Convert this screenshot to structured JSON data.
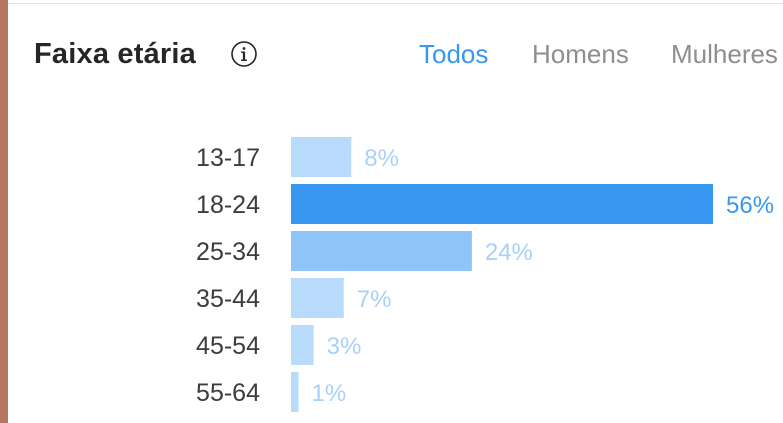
{
  "header": {
    "title": "Faixa etária",
    "info_icon": "info-circle-icon"
  },
  "tabs": [
    {
      "label": "Todos",
      "active": true
    },
    {
      "label": "Homens",
      "active": false
    },
    {
      "label": "Mulheres",
      "active": false
    }
  ],
  "colors": {
    "accent": "#3897f0",
    "bar_light": "#b9dbfb",
    "bar_mid": "#8ec4f7",
    "label_light": "#a9d0f8",
    "tab_inactive": "#8e8e8e"
  },
  "chart_data": {
    "type": "bar",
    "orientation": "horizontal",
    "categories": [
      "13-17",
      "18-24",
      "25-34",
      "35-44",
      "45-54",
      "55-64"
    ],
    "values": [
      8,
      56,
      24,
      7,
      3,
      1
    ],
    "value_labels": [
      "8%",
      "56%",
      "24%",
      "7%",
      "3%",
      "1%"
    ],
    "highlight_index": 1,
    "xlim": [
      0,
      56
    ],
    "grid": false,
    "legend": "none"
  }
}
